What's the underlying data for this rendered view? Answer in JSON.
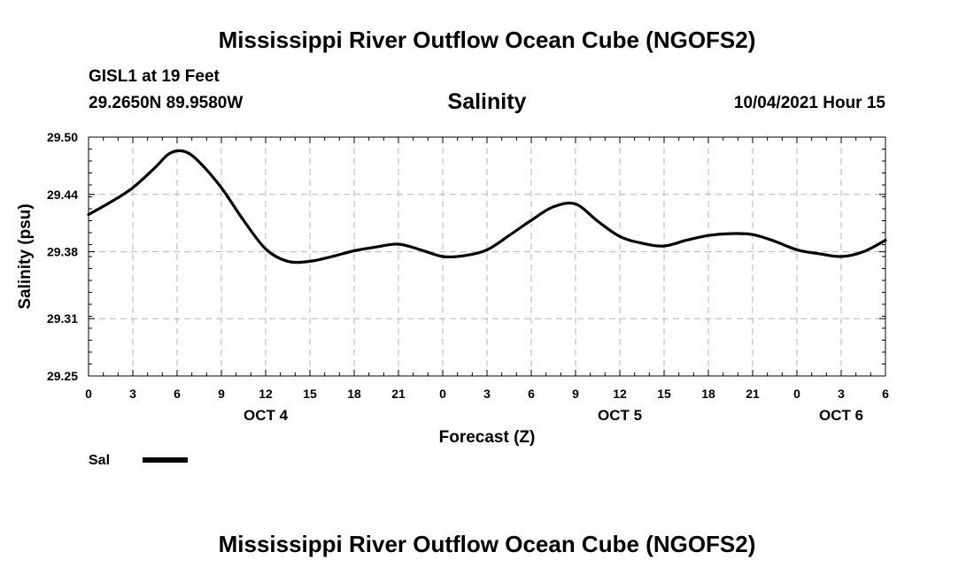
{
  "header": {
    "title": "Mississippi River Outflow Ocean Cube (NGOFS2)",
    "station": "GISL1 at 19 Feet",
    "coords": "29.2650N  89.9580W",
    "datetime": "10/04/2021 Hour 15"
  },
  "footer": {
    "title": "Mississippi River Outflow Ocean Cube (NGOFS2)"
  },
  "chart_data": {
    "type": "line",
    "title": "Salinity",
    "xlabel": "Forecast (Z)",
    "ylabel": "Salinity (psu)",
    "xlim": [
      0,
      54
    ],
    "ylim": [
      29.25,
      29.5
    ],
    "yticks": [
      29.25,
      29.31,
      29.38,
      29.44,
      29.5
    ],
    "xticks": [
      0,
      3,
      6,
      9,
      12,
      15,
      18,
      21,
      24,
      27,
      30,
      33,
      36,
      39,
      42,
      45,
      48,
      51,
      54
    ],
    "xtick_labels": [
      "0",
      "3",
      "6",
      "9",
      "12",
      "15",
      "18",
      "21",
      "0",
      "3",
      "6",
      "9",
      "12",
      "15",
      "18",
      "21",
      "0",
      "3",
      "6"
    ],
    "date_labels": [
      {
        "label": "OCT 4",
        "x": 12
      },
      {
        "label": "OCT 5",
        "x": 36
      },
      {
        "label": "OCT 6",
        "x": 51
      }
    ],
    "grid": true,
    "legend": [
      {
        "name": "Sal",
        "color": "#000000"
      }
    ],
    "series": [
      {
        "name": "Sal",
        "color": "#000000",
        "x": [
          0,
          1.5,
          3,
          4.5,
          5.5,
          6.5,
          7.5,
          9,
          10.5,
          12,
          13.5,
          15,
          16.5,
          18,
          19.5,
          21,
          22.5,
          24,
          25.5,
          27,
          28.5,
          30,
          31.5,
          33,
          34.5,
          36,
          37.5,
          39,
          40.5,
          42,
          43.5,
          45,
          46.5,
          48,
          49.5,
          51,
          52.5,
          54
        ],
        "values": [
          29.419,
          29.432,
          29.447,
          29.468,
          29.483,
          29.485,
          29.474,
          29.447,
          29.413,
          29.383,
          29.37,
          29.37,
          29.375,
          29.381,
          29.385,
          29.388,
          29.382,
          29.375,
          29.376,
          29.382,
          29.397,
          29.413,
          29.427,
          29.43,
          29.412,
          29.396,
          29.389,
          29.386,
          29.392,
          29.397,
          29.399,
          29.398,
          29.391,
          29.382,
          29.378,
          29.375,
          29.38,
          29.392
        ]
      }
    ]
  }
}
